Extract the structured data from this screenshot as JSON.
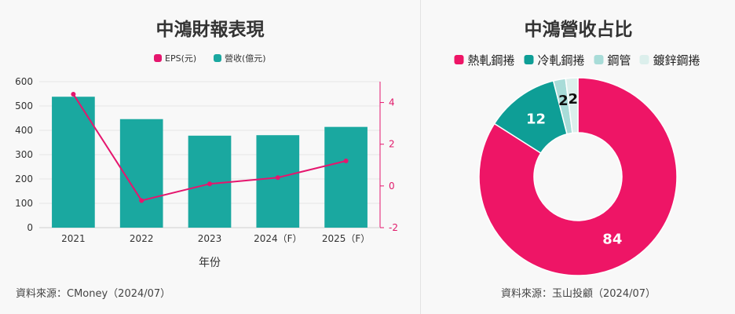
{
  "left": {
    "title": "中鴻財報表現",
    "source": "資料來源：CMoney（2024/07）",
    "colors": {
      "bar": "#1aa8a0",
      "line": "#e5166e"
    },
    "chart_data": {
      "type": "bar",
      "categories": [
        "2021",
        "2022",
        "2023",
        "2024（F）",
        "2025（F）"
      ],
      "series": [
        {
          "name": "營收(億元)",
          "type": "bar",
          "axis": "left",
          "values": [
            538,
            446,
            378,
            380,
            414
          ]
        },
        {
          "name": "EPS(元)",
          "type": "line",
          "axis": "right",
          "values": [
            4.4,
            -0.7,
            0.1,
            0.4,
            1.2
          ]
        }
      ],
      "xlabel": "年份",
      "ylim": [
        0,
        600
      ],
      "yticks": [
        0,
        100,
        200,
        300,
        400,
        500,
        600
      ],
      "y2lim": [
        -2,
        5
      ],
      "y2ticks": [
        -2,
        0,
        2,
        4
      ],
      "legend": "top-center",
      "grid": true
    }
  },
  "right": {
    "title": "中鴻營收占比",
    "source": "資料來源：玉山投顧（2024/07）",
    "chart_data": {
      "type": "pie",
      "donut": true,
      "legend": "top-center",
      "slices": [
        {
          "name": "熱軋鋼捲",
          "value": 84,
          "label": "84",
          "color": "#ee1566"
        },
        {
          "name": "冷軋鋼捲",
          "value": 12,
          "label": "12",
          "color": "#0e9e96"
        },
        {
          "name": "鋼管",
          "value": 2,
          "label": "2",
          "color": "#a8dcd8"
        },
        {
          "name": "鍍鋅鋼捲",
          "value": 2,
          "label": "2",
          "color": "#dcefec"
        }
      ]
    }
  }
}
